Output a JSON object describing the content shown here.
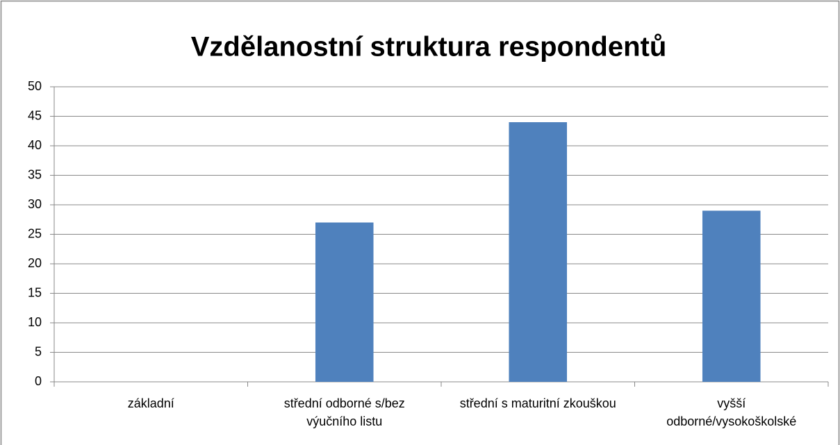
{
  "chart_data": {
    "type": "bar",
    "title": "Vzdělanostní struktura respondentů",
    "categories": [
      "základní",
      "střední odborné s/bez výučního listu",
      "střední s maturitní zkouškou",
      "vyšší odborné/vysokoškolské"
    ],
    "values": [
      0,
      27,
      44,
      29
    ],
    "color": "#4f81bd",
    "ylim": [
      0,
      50
    ],
    "yticks": [
      0,
      5,
      10,
      15,
      20,
      25,
      30,
      35,
      40,
      45,
      50
    ],
    "grid": true
  }
}
